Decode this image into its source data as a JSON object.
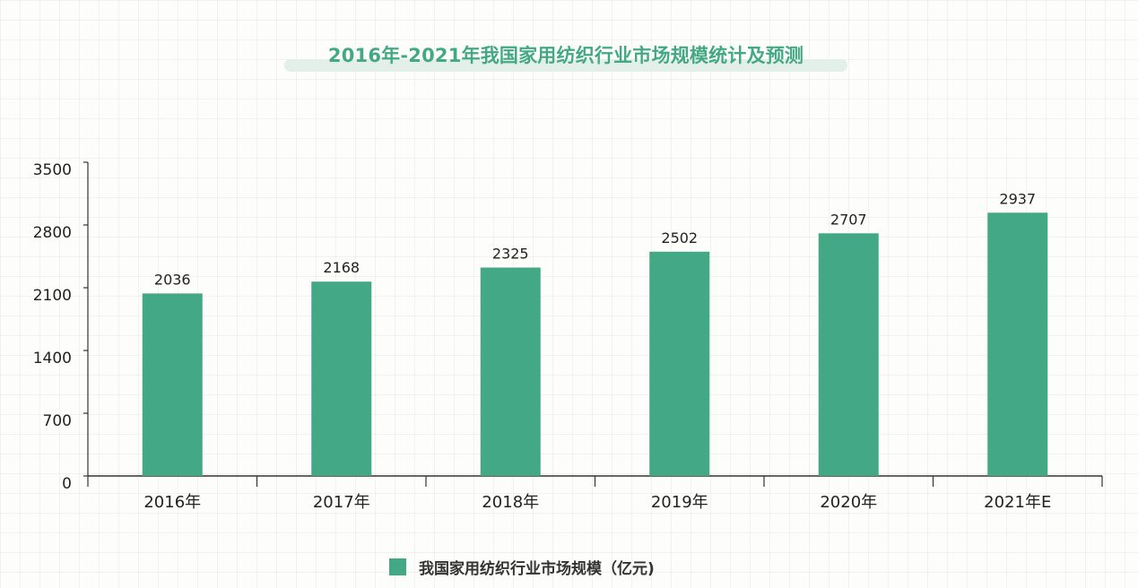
{
  "chart_data": {
    "type": "bar",
    "title": "2016年-2021年我国家用纺织行业市场规模统计及预测",
    "categories": [
      "2016年",
      "2017年",
      "2018年",
      "2019年",
      "2020年",
      "2021年E"
    ],
    "series": [
      {
        "name": "我国家用纺织行业市场规模（亿元)",
        "values": [
          2036,
          2168,
          2325,
          2502,
          2707,
          2937
        ]
      }
    ],
    "data_labels": [
      "2036",
      "2168",
      "2325",
      "2502",
      "2707",
      "2937"
    ],
    "y_ticks": [
      "0",
      "700",
      "1400",
      "2100",
      "2800",
      "3500"
    ],
    "ylim": [
      0,
      3500
    ],
    "xlabel": "",
    "ylabel": "",
    "grid": false,
    "legend_position": "bottom",
    "bar_color": "#43a886",
    "title_color": "#43a886"
  }
}
